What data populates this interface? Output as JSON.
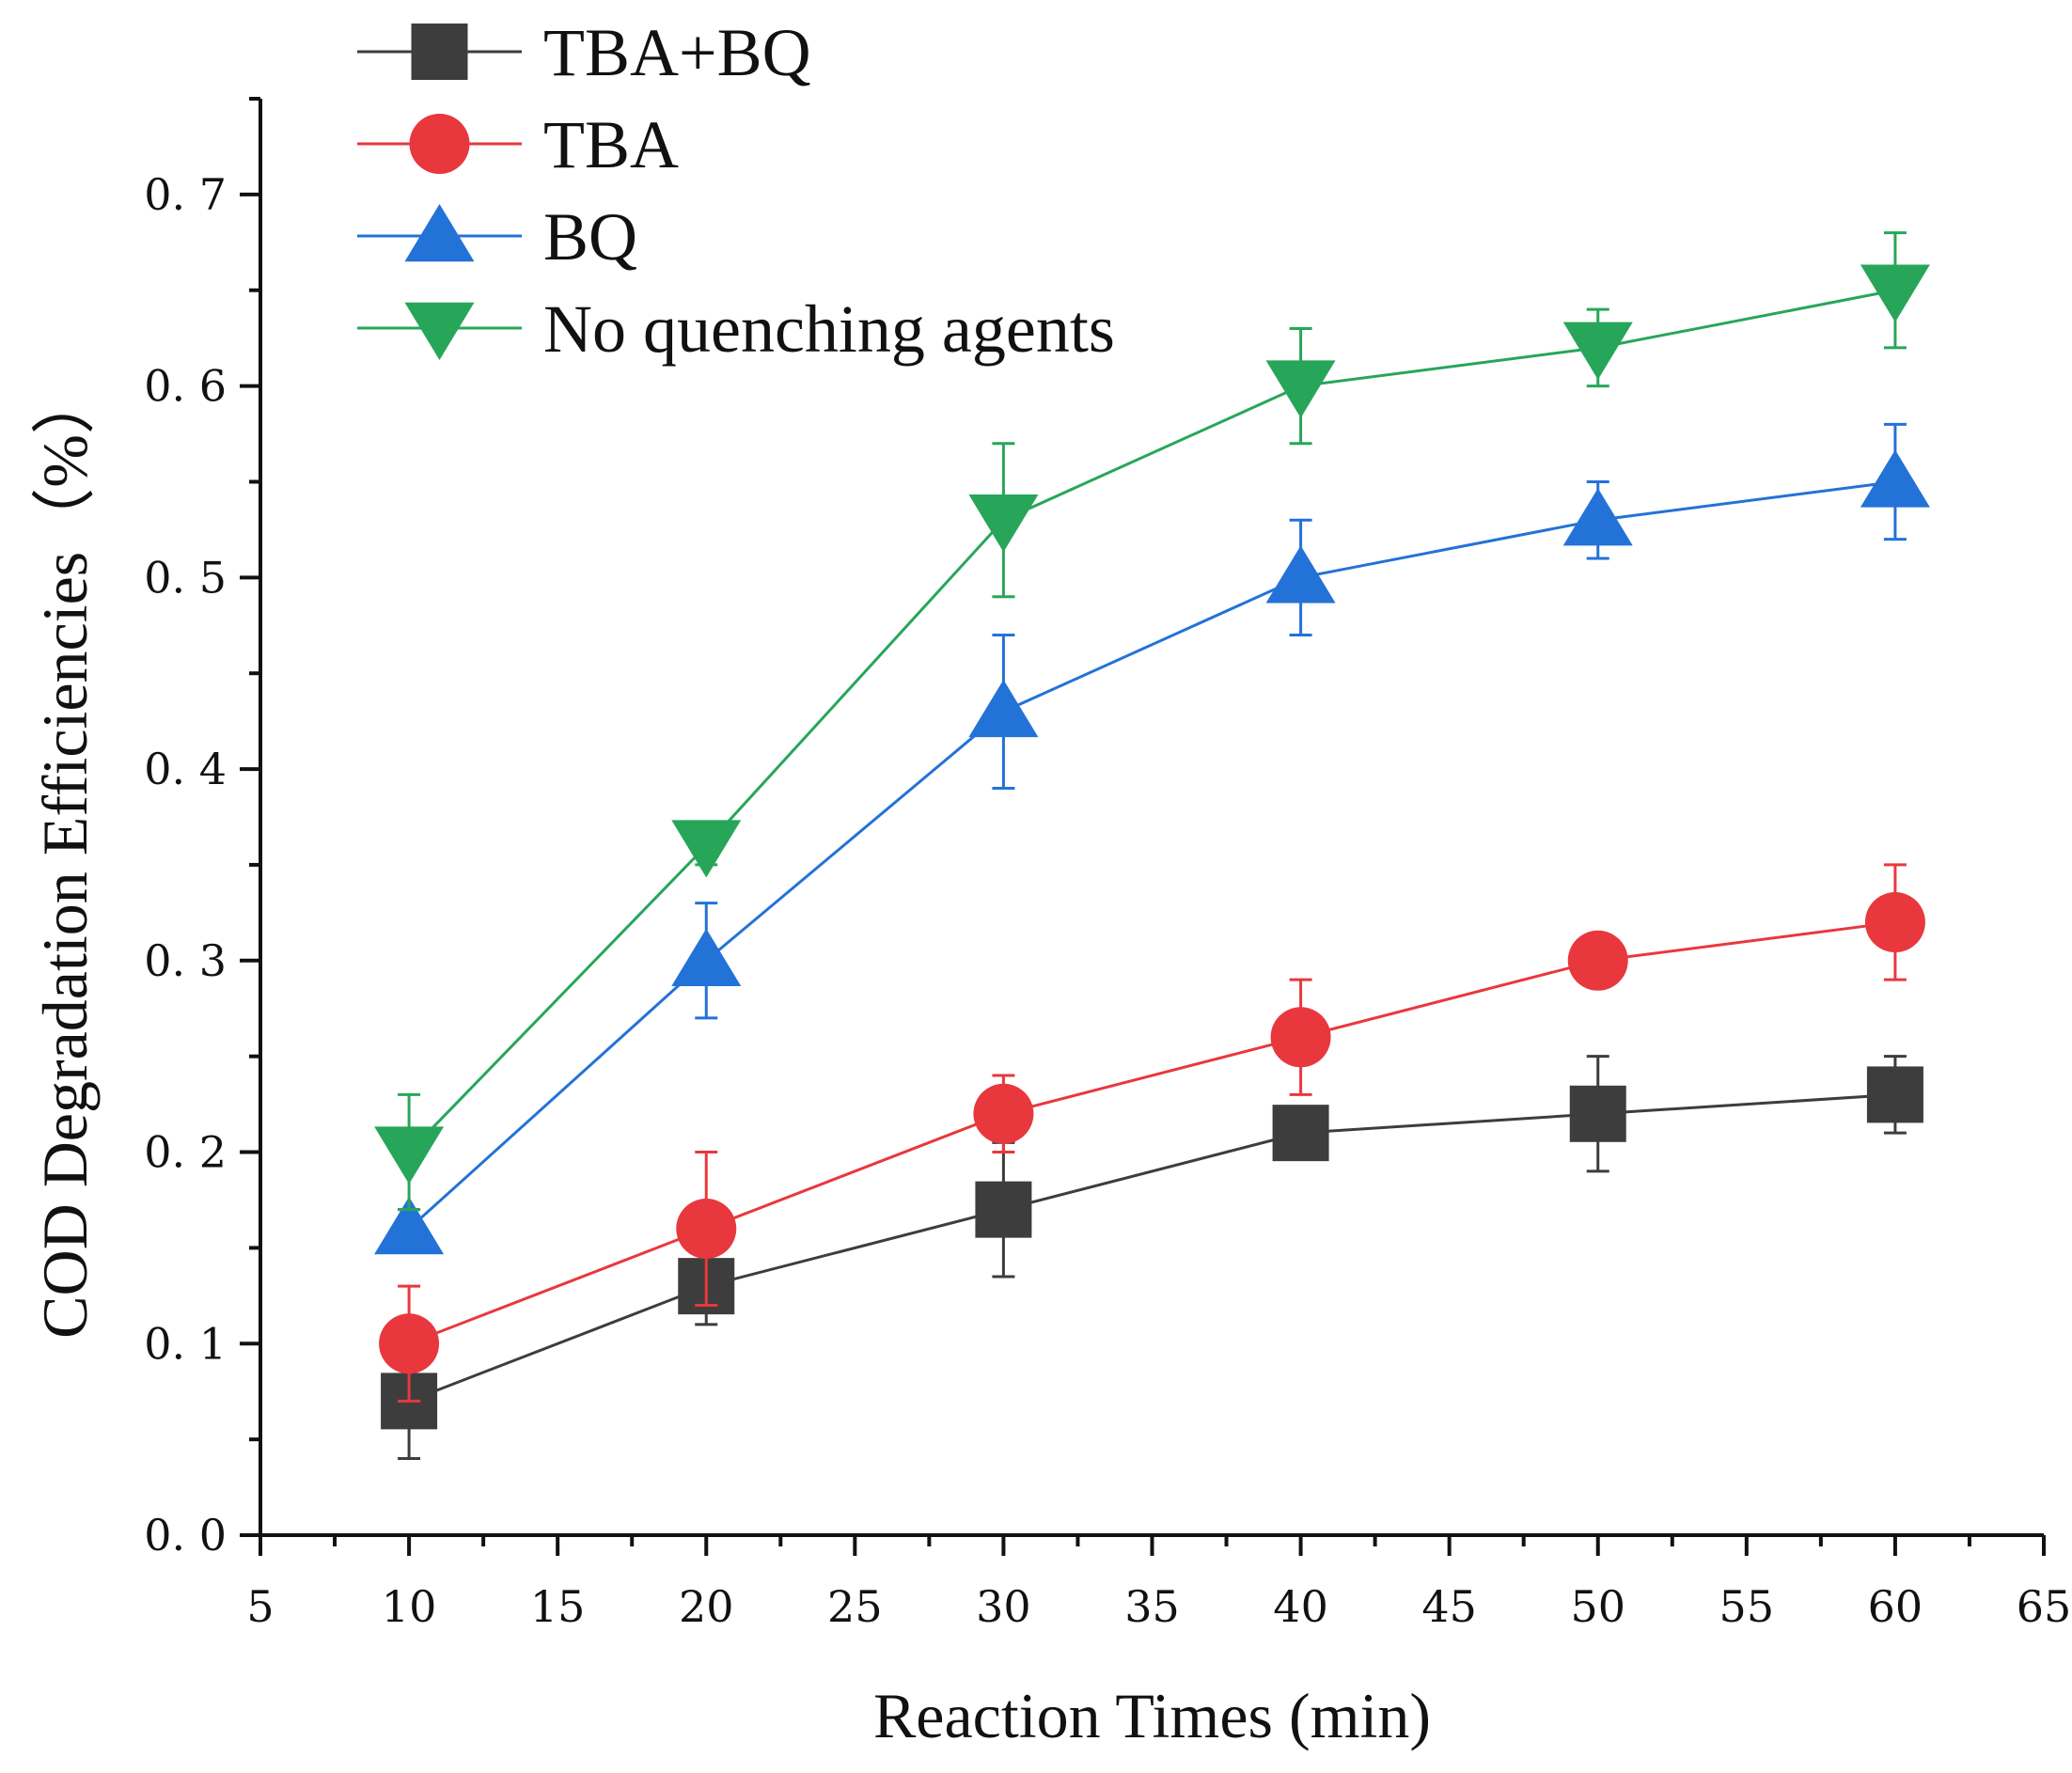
{
  "chart_data": {
    "type": "line",
    "title": "",
    "xlabel": "Reaction Times (min)",
    "ylabel": "COD Degradation Efficiencies（%）",
    "xlim": [
      5,
      65
    ],
    "ylim": [
      0,
      0.75
    ],
    "x_ticks": [
      5,
      10,
      15,
      20,
      25,
      30,
      35,
      40,
      45,
      50,
      55,
      60,
      65
    ],
    "y_ticks": [
      0.0,
      0.1,
      0.2,
      0.3,
      0.4,
      0.5,
      0.6,
      0.7
    ],
    "y_tick_labels": [
      "0. 0",
      "0. 1",
      "0. 2",
      "0. 3",
      "0. 4",
      "0. 5",
      "0. 6",
      "0. 7"
    ],
    "legend_position": "top-left",
    "x": [
      10,
      20,
      30,
      40,
      50,
      60
    ],
    "series": [
      {
        "name": "TBA+BQ",
        "color": "#3d3d3d",
        "marker": "square",
        "values": [
          0.07,
          0.13,
          0.17,
          0.21,
          0.22,
          0.23
        ],
        "errors": [
          0.03,
          0.02,
          0.035,
          0.01,
          0.03,
          0.02
        ]
      },
      {
        "name": "TBA",
        "color": "#e8383d",
        "marker": "circle",
        "values": [
          0.1,
          0.16,
          0.22,
          0.26,
          0.3,
          0.32
        ],
        "errors": [
          0.03,
          0.04,
          0.02,
          0.03,
          0.01,
          0.03
        ]
      },
      {
        "name": "BQ",
        "color": "#2372d8",
        "marker": "triangle-up",
        "values": [
          0.16,
          0.3,
          0.43,
          0.5,
          0.53,
          0.55
        ],
        "errors": [
          0.01,
          0.03,
          0.04,
          0.03,
          0.02,
          0.03
        ]
      },
      {
        "name": "No quenching agents",
        "color": "#27a65a",
        "marker": "triangle-down",
        "values": [
          0.2,
          0.36,
          0.53,
          0.6,
          0.62,
          0.65
        ],
        "errors": [
          0.03,
          0.01,
          0.04,
          0.03,
          0.02,
          0.03
        ]
      }
    ]
  }
}
